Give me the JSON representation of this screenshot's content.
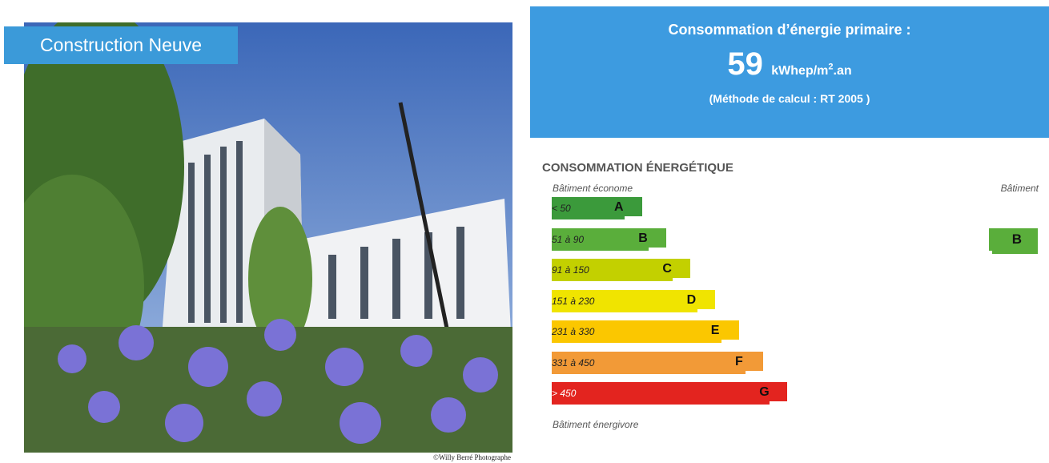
{
  "photo": {
    "badge": "Construction Neuve",
    "credit": "©Willy Berré Photographe"
  },
  "summary": {
    "title": "Consommation d’énergie primaire :",
    "value": "59",
    "unit": "kWhep/m",
    "unit_sup": "2",
    "unit_end": ".an",
    "method": "(Méthode de calcul : RT 2005 )"
  },
  "label": {
    "title": "CONSOMMATION ÉNERGÉTIQUE",
    "top_left": "Bâtiment économe",
    "top_right": "Bâtiment",
    "bottom": "Bâtiment énergivore",
    "classes": [
      {
        "range": "< 50",
        "letter": "A",
        "color": "#3b9a3b"
      },
      {
        "range": "51 à 90",
        "letter": "B",
        "color": "#5aae3b"
      },
      {
        "range": "91 à 150",
        "letter": "C",
        "color": "#c3d000"
      },
      {
        "range": "151 à 230",
        "letter": "D",
        "color": "#f0e400"
      },
      {
        "range": "231 à 330",
        "letter": "E",
        "color": "#fbc700"
      },
      {
        "range": "331 à 450",
        "letter": "F",
        "color": "#f29a37"
      },
      {
        "range": "> 450",
        "letter": "G",
        "color": "#e3241f"
      }
    ],
    "current": {
      "letter": "B",
      "color": "#5aae3b"
    }
  }
}
